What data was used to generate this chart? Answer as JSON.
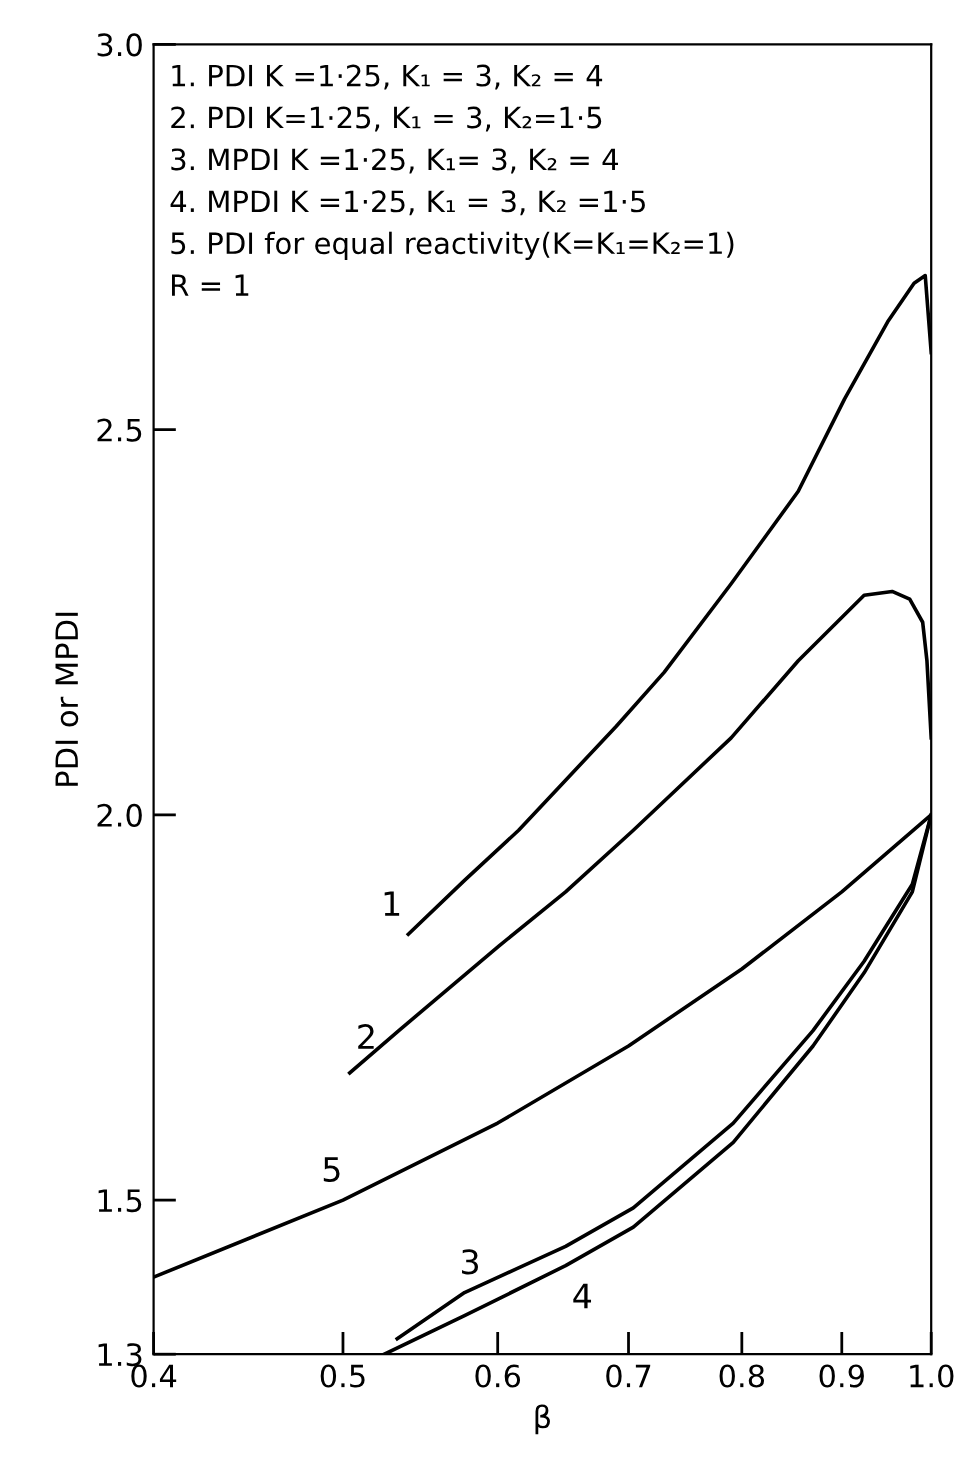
{
  "chart_data": {
    "type": "line",
    "xlabel": "β",
    "ylabel": "PDI or MPDI",
    "log": "x",
    "xlim": [
      0.4,
      1.0
    ],
    "ylim": [
      1.3,
      3.0
    ],
    "xticks": [
      0.4,
      0.5,
      0.6,
      0.7,
      0.8,
      0.9,
      {
        "value": 1,
        "label": "1.0"
      }
    ],
    "yticks": [
      1.3,
      1.5,
      {
        "value": 2,
        "label": "2.0"
      },
      2.5,
      {
        "value": 3,
        "label": "3.0"
      }
    ],
    "marker": "none",
    "line_style": "solid",
    "series": [
      {
        "name": "1",
        "color": "#000000",
        "x": [
          0.54,
          0.577,
          0.615,
          0.65,
          0.69,
          0.73,
          0.79,
          0.855,
          0.903,
          0.95,
          0.98,
          0.993,
          1.0
        ],
        "values": [
          1.845,
          1.915,
          1.98,
          2.045,
          2.115,
          2.185,
          2.3,
          2.42,
          2.54,
          2.64,
          2.69,
          2.7,
          2.6
        ]
      },
      {
        "name": "2",
        "color": "#000000",
        "x": [
          0.504,
          0.534,
          0.601,
          0.65,
          0.704,
          0.79,
          0.855,
          0.924,
          0.955,
          0.975,
          0.99,
          0.995,
          1.0
        ],
        "values": [
          1.665,
          1.72,
          1.83,
          1.9,
          1.98,
          2.1,
          2.2,
          2.285,
          2.29,
          2.28,
          2.25,
          2.2,
          2.1
        ]
      },
      {
        "name": "3",
        "color": "#000000",
        "x": [
          0.533,
          0.577,
          0.65,
          0.704,
          0.792,
          0.87,
          0.924,
          0.978,
          1.0
        ],
        "values": [
          1.32,
          1.38,
          1.44,
          1.49,
          1.6,
          1.72,
          1.81,
          1.91,
          2.0
        ]
      },
      {
        "name": "4",
        "color": "#000000",
        "x": [
          0.525,
          0.577,
          0.65,
          0.704,
          0.792,
          0.87,
          0.924,
          0.978,
          1.0
        ],
        "values": [
          1.3,
          1.35,
          1.415,
          1.465,
          1.575,
          1.7,
          1.795,
          1.9,
          2.0
        ]
      },
      {
        "name": "5",
        "color": "#000000",
        "x": [
          0.4,
          0.5,
          0.6,
          0.7,
          0.8,
          0.9,
          1.0
        ],
        "values": [
          1.4,
          1.5,
          1.6,
          1.7,
          1.8,
          1.9,
          2.0
        ]
      }
    ],
    "annotations": [
      "1. PDI K =1·25, K₁ = 3, K₂ = 4",
      "2. PDI K=1·25, K₁ = 3, K₂=1·5",
      "3. MPDI K =1·25, K₁= 3, K₂ = 4",
      "4. MPDI K =1·25, K₁ = 3, K₂ =1·5",
      "5. PDI for equal reactivity(K=K₁=K₂=1)",
      "R = 1"
    ]
  }
}
